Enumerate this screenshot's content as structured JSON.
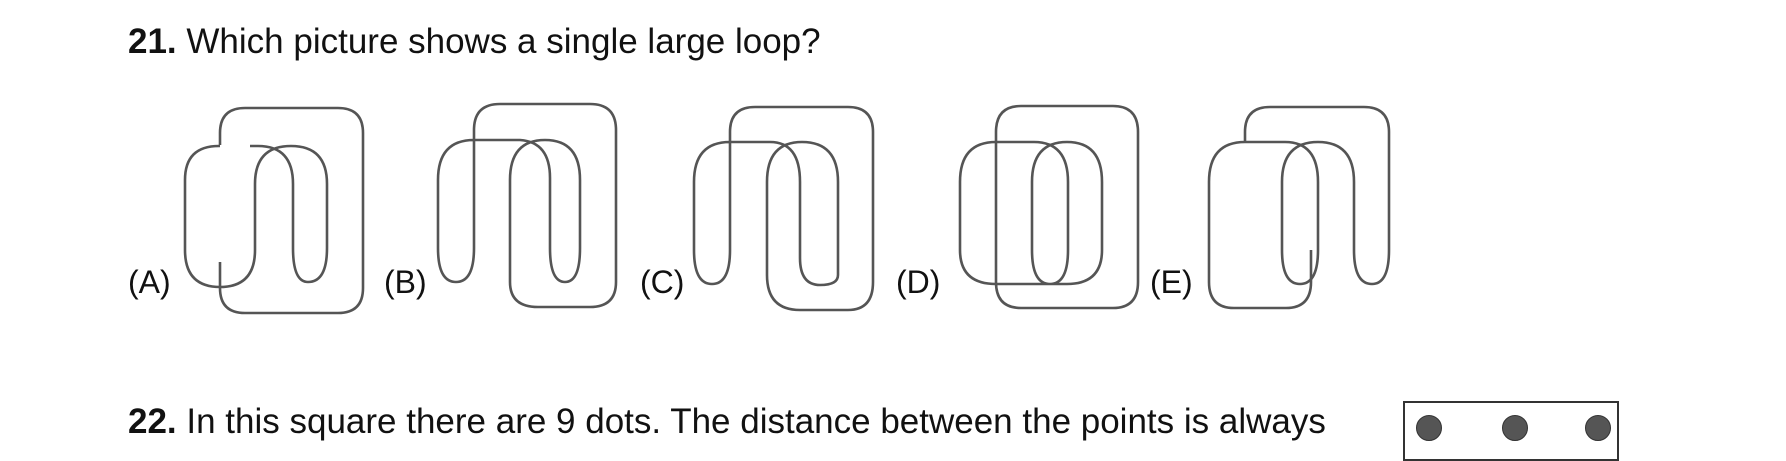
{
  "question21": {
    "number": "21.",
    "text": "Which picture shows a single large loop?",
    "choices": [
      {
        "label": "(A)"
      },
      {
        "label": "(B)"
      },
      {
        "label": "(C)"
      },
      {
        "label": "(D)"
      },
      {
        "label": "(E)"
      }
    ]
  },
  "question22": {
    "number": "22.",
    "text": "In this square there are 9 dots.  The distance between the points is always"
  },
  "colors": {
    "text": "#111111",
    "loop_stroke": "#555555",
    "dot_fill": "#555555"
  }
}
